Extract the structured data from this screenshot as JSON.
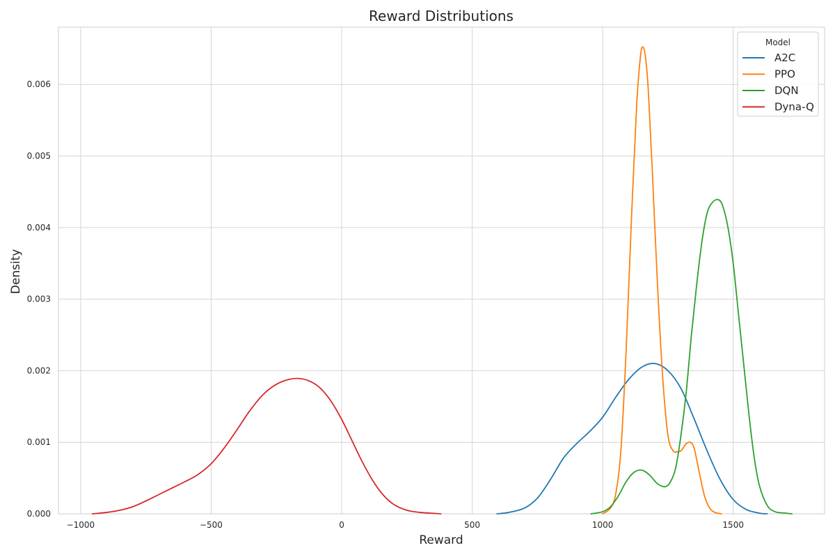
{
  "chart_data": {
    "type": "line",
    "title": "Reward Distributions",
    "xlabel": "Reward",
    "ylabel": "Density",
    "xlim": [
      -1085,
      1850
    ],
    "ylim": [
      0,
      0.0068
    ],
    "xticks": [
      -1000,
      -500,
      0,
      500,
      1000,
      1500
    ],
    "xtick_labels": [
      "−1000",
      "−500",
      "0",
      "500",
      "1000",
      "1500"
    ],
    "yticks": [
      0,
      0.001,
      0.002,
      0.003,
      0.004,
      0.005,
      0.006
    ],
    "ytick_labels": [
      "0.000",
      "0.001",
      "0.002",
      "0.003",
      "0.004",
      "0.005",
      "0.006"
    ],
    "grid": true,
    "legend": {
      "title": "Model",
      "placement": "top-right"
    },
    "series": [
      {
        "name": "A2C",
        "color": "#1f77b4",
        "x": [
          595,
          640,
          700,
          750,
          800,
          850,
          900,
          950,
          1000,
          1050,
          1100,
          1150,
          1200,
          1250,
          1300,
          1350,
          1400,
          1450,
          1500,
          1550,
          1600,
          1630
        ],
        "y": [
          0.0,
          2e-05,
          8e-05,
          0.00022,
          0.00048,
          0.00078,
          0.00098,
          0.00115,
          0.00135,
          0.00163,
          0.00188,
          0.00205,
          0.0021,
          0.002,
          0.00175,
          0.00133,
          0.00088,
          0.00048,
          0.0002,
          6e-05,
          1e-05,
          0.0
        ]
      },
      {
        "name": "PPO",
        "color": "#ff7f0e",
        "x": [
          1000,
          1030,
          1050,
          1070,
          1090,
          1110,
          1130,
          1145,
          1155,
          1165,
          1175,
          1190,
          1210,
          1230,
          1250,
          1270,
          1290,
          1300,
          1310,
          1320,
          1335,
          1350,
          1370,
          1390,
          1410,
          1430,
          1455
        ],
        "y": [
          0.0,
          8e-05,
          0.00028,
          0.0009,
          0.0023,
          0.0041,
          0.0057,
          0.0064,
          0.00652,
          0.00635,
          0.0059,
          0.0048,
          0.0032,
          0.0019,
          0.0011,
          0.00088,
          0.00087,
          0.00088,
          0.00093,
          0.00098,
          0.001,
          0.00092,
          0.00058,
          0.00025,
          8e-05,
          2e-05,
          0.0
        ]
      },
      {
        "name": "DQN",
        "color": "#2ca02c",
        "x": [
          955,
          1000,
          1030,
          1060,
          1090,
          1120,
          1150,
          1180,
          1210,
          1240,
          1260,
          1280,
          1300,
          1320,
          1340,
          1360,
          1380,
          1400,
          1420,
          1443,
          1460,
          1480,
          1500,
          1520,
          1540,
          1560,
          1580,
          1600,
          1630,
          1660,
          1700,
          1725
        ],
        "y": [
          0.0,
          3e-05,
          0.0001,
          0.00025,
          0.00045,
          0.00058,
          0.00061,
          0.00054,
          0.00042,
          0.00038,
          0.00045,
          0.00065,
          0.0011,
          0.0017,
          0.0025,
          0.0032,
          0.0038,
          0.0042,
          0.00435,
          0.00439,
          0.0043,
          0.004,
          0.0035,
          0.0028,
          0.0021,
          0.0014,
          0.0008,
          0.0004,
          0.00012,
          3e-05,
          1e-05,
          0.0
        ]
      },
      {
        "name": "Dyna-Q",
        "color": "#d62728",
        "x": [
          -955,
          -900,
          -850,
          -800,
          -750,
          -700,
          -650,
          -600,
          -550,
          -500,
          -450,
          -400,
          -350,
          -300,
          -250,
          -200,
          -160,
          -120,
          -80,
          -40,
          0,
          40,
          80,
          120,
          160,
          200,
          250,
          300,
          340,
          380
        ],
        "y": [
          0.0,
          2e-05,
          5e-05,
          0.0001,
          0.00018,
          0.00027,
          0.00036,
          0.00045,
          0.00055,
          0.0007,
          0.00092,
          0.00118,
          0.00145,
          0.00167,
          0.00181,
          0.00188,
          0.00189,
          0.00185,
          0.00175,
          0.00157,
          0.00132,
          0.00102,
          0.00072,
          0.00046,
          0.00026,
          0.00013,
          5e-05,
          2e-05,
          1e-05,
          0.0
        ]
      }
    ]
  }
}
